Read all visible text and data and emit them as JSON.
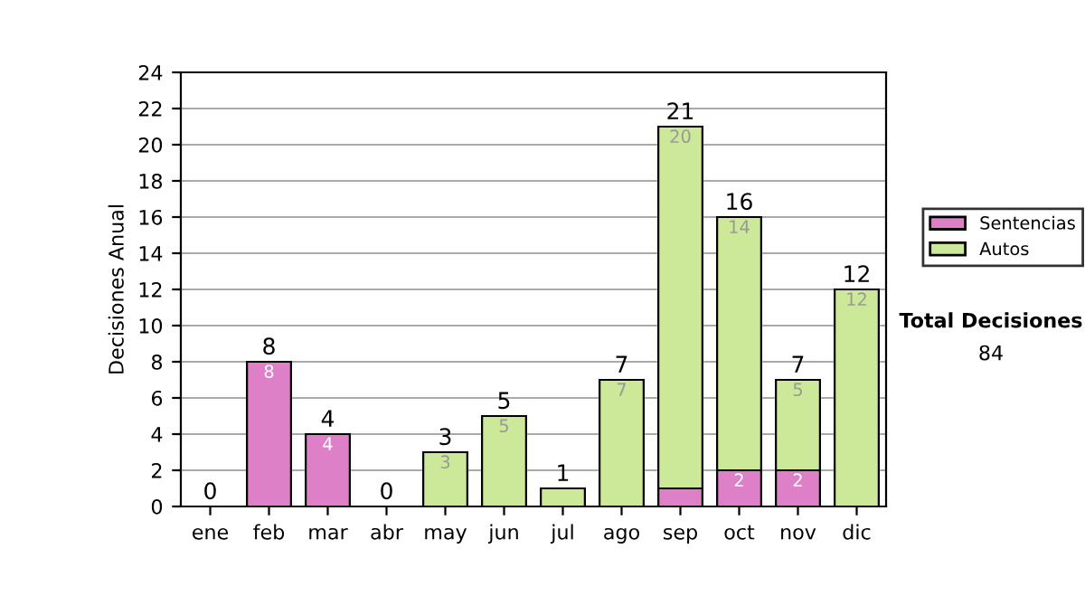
{
  "chart_data": {
    "type": "bar",
    "stacked": true,
    "ylabel": "Decisiones Anual",
    "categories": [
      "ene",
      "feb",
      "mar",
      "abr",
      "may",
      "jun",
      "jul",
      "ago",
      "sep",
      "oct",
      "nov",
      "dic"
    ],
    "series": [
      {
        "name": "Sentencias",
        "color": "#dd80c8",
        "values": [
          0,
          8,
          4,
          0,
          0,
          0,
          0,
          0,
          1,
          2,
          2,
          0
        ],
        "value_labels": [
          null,
          "8",
          "4",
          null,
          null,
          null,
          null,
          null,
          null,
          "2",
          "2",
          null
        ]
      },
      {
        "name": "Autos",
        "color": "#cce899",
        "values": [
          0,
          0,
          0,
          0,
          3,
          5,
          1,
          7,
          20,
          14,
          5,
          12
        ],
        "value_labels": [
          null,
          null,
          null,
          null,
          "3",
          "5",
          null,
          "7",
          "20",
          "14",
          "5",
          "12"
        ]
      }
    ],
    "totals": [
      "0",
      "8",
      "4",
      "0",
      "3",
      "5",
      "1",
      "7",
      "21",
      "16",
      "7",
      "12"
    ],
    "ylim": [
      0,
      24
    ],
    "yticks": [
      0,
      2,
      4,
      6,
      8,
      10,
      12,
      14,
      16,
      18,
      20,
      22,
      24
    ],
    "grid": "y",
    "legend": "right",
    "annotations": [
      "Total Decisiones",
      "84"
    ]
  }
}
